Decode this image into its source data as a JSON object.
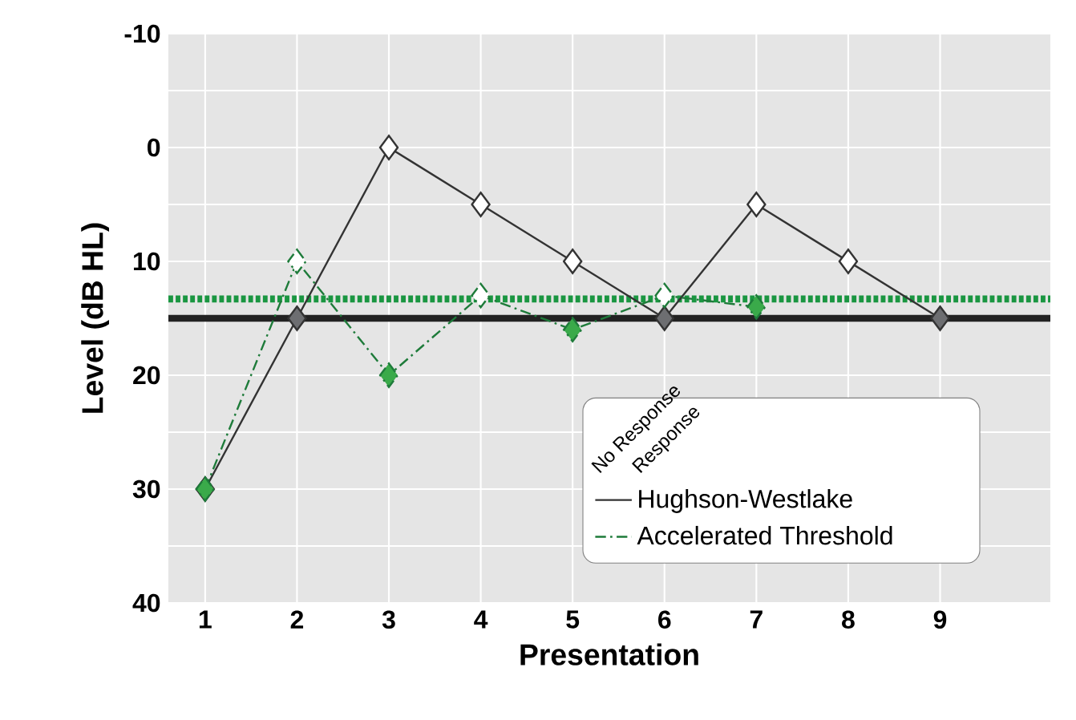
{
  "chart_data": {
    "type": "line",
    "xlabel": "Presentation",
    "ylabel": "Level (dB HL)",
    "x": [
      1,
      2,
      3,
      4,
      5,
      6,
      7,
      8,
      9
    ],
    "xlim": [
      0.6,
      10.2
    ],
    "xticks": [
      1,
      2,
      3,
      4,
      5,
      6,
      7,
      8,
      9
    ],
    "ylim": [
      40,
      -10
    ],
    "yticks": [
      -10,
      0,
      10,
      20,
      30,
      40
    ],
    "grid": true,
    "marker": "diamond",
    "legend": "bottom right",
    "annotations": [
      "No Response",
      "Response"
    ],
    "series": [
      {
        "name": "Hughson-Westlake",
        "color": "#333333",
        "line_style": "solid",
        "values": [
          30,
          15,
          0,
          5,
          10,
          15,
          5,
          10,
          15
        ],
        "colors": [
          "#6d6e71",
          "#6d6e71",
          "#ffffff",
          "#ffffff",
          "#ffffff",
          "#6d6e71",
          "#ffffff",
          "#ffffff",
          "#6d6e71"
        ]
      },
      {
        "name": "Accelerated Threshold",
        "color": "#1e7b3a",
        "line_style": "dashed",
        "x": [
          1,
          2,
          3,
          4,
          5,
          6,
          7
        ],
        "values": [
          30,
          10,
          20,
          13,
          16,
          13,
          14
        ],
        "colors": [
          "#3aaa4a",
          "#ffffff",
          "#3aaa4a",
          "#ffffff",
          "#3aaa4a",
          "#ffffff",
          "#3aaa4a"
        ]
      }
    ],
    "ref_lines": [
      {
        "axis": "y",
        "value": 15,
        "color": "#222222",
        "line_style": "solid"
      },
      {
        "axis": "y",
        "value": 13.3,
        "color": "#1a9641",
        "line_style": "dotted"
      }
    ]
  }
}
